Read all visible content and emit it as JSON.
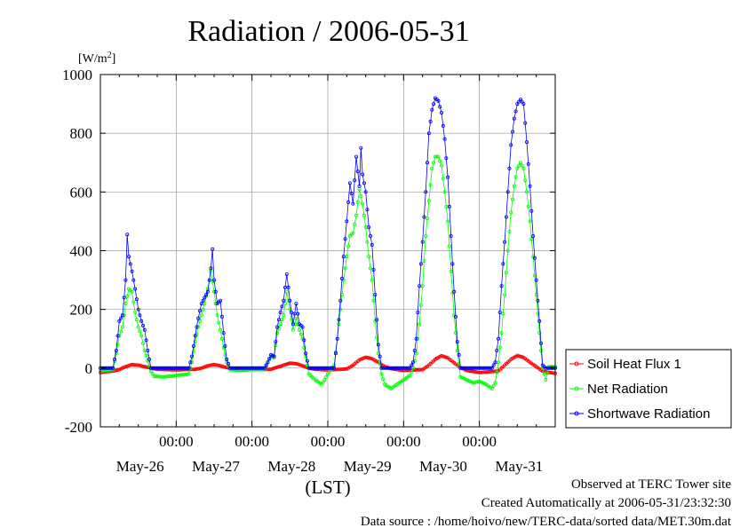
{
  "chart_data": {
    "type": "line",
    "title": "Radiation / 2006-05-31",
    "ylabel_unit": "[W/m",
    "ylabel_sup": "2",
    "ylabel_close": "]",
    "xlabel": "(LST)",
    "ylim": [
      -200,
      1000
    ],
    "yticks": [
      -200,
      0,
      200,
      400,
      600,
      800,
      1000
    ],
    "ytick_labels": [
      "-200",
      "0",
      "200",
      "400",
      "600",
      "800",
      "1000"
    ],
    "xlim": [
      0,
      144
    ],
    "xtick_labels": [
      "00:00",
      "00:00",
      "00:00",
      "00:00",
      "00:00"
    ],
    "xtick_positions": [
      24,
      48,
      72,
      96,
      120
    ],
    "day_labels": [
      "May-26",
      "May-27",
      "May-28",
      "May-29",
      "May-30",
      "May-31"
    ],
    "day_label_positions": [
      12,
      36,
      60,
      84,
      108,
      132
    ],
    "x_unit": "hours from 2006-05-25 12:00 LST",
    "grid": true,
    "legend_position": "right",
    "series": [
      {
        "name": "Soil Heat Flux 1",
        "color": "#ff0000",
        "profile": [
          [
            0,
            -15
          ],
          [
            2,
            -12
          ],
          [
            4,
            -10
          ],
          [
            6,
            -5
          ],
          [
            8,
            5
          ],
          [
            10,
            12
          ],
          [
            12,
            10
          ],
          [
            14,
            5
          ],
          [
            16,
            0
          ],
          [
            18,
            -4
          ],
          [
            24,
            -6
          ],
          [
            30,
            -4
          ],
          [
            32,
            0
          ],
          [
            34,
            8
          ],
          [
            36,
            12
          ],
          [
            38,
            8
          ],
          [
            40,
            2
          ],
          [
            42,
            -2
          ],
          [
            48,
            -5
          ],
          [
            54,
            -4
          ],
          [
            56,
            3
          ],
          [
            58,
            10
          ],
          [
            60,
            17
          ],
          [
            62,
            15
          ],
          [
            64,
            8
          ],
          [
            66,
            0
          ],
          [
            68,
            -4
          ],
          [
            72,
            -6
          ],
          [
            78,
            -3
          ],
          [
            80,
            10
          ],
          [
            82,
            28
          ],
          [
            84,
            37
          ],
          [
            86,
            32
          ],
          [
            88,
            20
          ],
          [
            90,
            5
          ],
          [
            92,
            -2
          ],
          [
            96,
            -8
          ],
          [
            102,
            -5
          ],
          [
            104,
            10
          ],
          [
            106,
            30
          ],
          [
            108,
            42
          ],
          [
            110,
            35
          ],
          [
            112,
            18
          ],
          [
            114,
            2
          ],
          [
            116,
            -8
          ],
          [
            120,
            -15
          ],
          [
            126,
            -10
          ],
          [
            128,
            10
          ],
          [
            130,
            30
          ],
          [
            132,
            43
          ],
          [
            134,
            36
          ],
          [
            136,
            20
          ],
          [
            138,
            5
          ],
          [
            140,
            -10
          ],
          [
            142,
            -15
          ],
          [
            144,
            -18
          ]
        ]
      },
      {
        "name": "Net Radiation",
        "color": "#00ff00",
        "profile": [
          [
            0,
            -10
          ],
          [
            4,
            -5
          ],
          [
            5,
            50
          ],
          [
            6,
            110
          ],
          [
            7,
            140
          ],
          [
            8,
            220
          ],
          [
            9,
            270
          ],
          [
            10,
            260
          ],
          [
            11,
            190
          ],
          [
            12,
            140
          ],
          [
            13,
            110
          ],
          [
            14,
            60
          ],
          [
            15,
            25
          ],
          [
            16,
            -10
          ],
          [
            17,
            -28
          ],
          [
            20,
            -30
          ],
          [
            24,
            -25
          ],
          [
            28,
            -20
          ],
          [
            29,
            20
          ],
          [
            30,
            90
          ],
          [
            31,
            140
          ],
          [
            32,
            180
          ],
          [
            33,
            220
          ],
          [
            34,
            270
          ],
          [
            35,
            330
          ],
          [
            36,
            260
          ],
          [
            37,
            180
          ],
          [
            38,
            130
          ],
          [
            39,
            70
          ],
          [
            40,
            20
          ],
          [
            41,
            -5
          ],
          [
            44,
            -8
          ],
          [
            48,
            -5
          ],
          [
            52,
            -5
          ],
          [
            53,
            20
          ],
          [
            54,
            40
          ],
          [
            55,
            35
          ],
          [
            56,
            120
          ],
          [
            57,
            150
          ],
          [
            58,
            180
          ],
          [
            59,
            260
          ],
          [
            60,
            200
          ],
          [
            61,
            130
          ],
          [
            62,
            170
          ],
          [
            63,
            130
          ],
          [
            64,
            100
          ],
          [
            65,
            40
          ],
          [
            66,
            -20
          ],
          [
            68,
            -40
          ],
          [
            70,
            -55
          ],
          [
            71,
            -40
          ],
          [
            72,
            -20
          ],
          [
            74,
            10
          ],
          [
            75,
            100
          ],
          [
            76,
            200
          ],
          [
            77,
            300
          ],
          [
            78,
            380
          ],
          [
            79,
            450
          ],
          [
            80,
            460
          ],
          [
            81,
            520
          ],
          [
            82,
            610
          ],
          [
            83,
            560
          ],
          [
            84,
            480
          ],
          [
            85,
            380
          ],
          [
            86,
            300
          ],
          [
            87,
            160
          ],
          [
            88,
            50
          ],
          [
            89,
            -20
          ],
          [
            90,
            -55
          ],
          [
            92,
            -70
          ],
          [
            94,
            -55
          ],
          [
            96,
            -40
          ],
          [
            98,
            -25
          ],
          [
            99,
            0
          ],
          [
            100,
            50
          ],
          [
            101,
            150
          ],
          [
            102,
            280
          ],
          [
            103,
            450
          ],
          [
            104,
            570
          ],
          [
            105,
            680
          ],
          [
            106,
            720
          ],
          [
            107,
            720
          ],
          [
            108,
            690
          ],
          [
            109,
            600
          ],
          [
            110,
            500
          ],
          [
            111,
            330
          ],
          [
            112,
            180
          ],
          [
            113,
            60
          ],
          [
            114,
            -30
          ],
          [
            116,
            -40
          ],
          [
            118,
            -50
          ],
          [
            120,
            -45
          ],
          [
            122,
            -55
          ],
          [
            124,
            -70
          ],
          [
            125,
            -50
          ],
          [
            126,
            20
          ],
          [
            127,
            120
          ],
          [
            128,
            250
          ],
          [
            129,
            400
          ],
          [
            130,
            530
          ],
          [
            131,
            620
          ],
          [
            132,
            680
          ],
          [
            133,
            700
          ],
          [
            134,
            680
          ],
          [
            135,
            600
          ],
          [
            136,
            500
          ],
          [
            137,
            380
          ],
          [
            138,
            250
          ],
          [
            139,
            120
          ],
          [
            140,
            0
          ],
          [
            141,
            -40
          ],
          [
            142,
            5
          ],
          [
            144,
            5
          ]
        ]
      },
      {
        "name": "Shortwave Radiation",
        "color": "#0000ff",
        "profile": [
          [
            0,
            0
          ],
          [
            4,
            0
          ],
          [
            5,
            60
          ],
          [
            6,
            160
          ],
          [
            7,
            180
          ],
          [
            8,
            300
          ],
          [
            8.5,
            455
          ],
          [
            9,
            380
          ],
          [
            10,
            330
          ],
          [
            11,
            270
          ],
          [
            12,
            200
          ],
          [
            13,
            160
          ],
          [
            14,
            130
          ],
          [
            15,
            60
          ],
          [
            16,
            0
          ],
          [
            28,
            0
          ],
          [
            29,
            40
          ],
          [
            30,
            110
          ],
          [
            31,
            170
          ],
          [
            32,
            220
          ],
          [
            33,
            240
          ],
          [
            34,
            260
          ],
          [
            35,
            340
          ],
          [
            35.5,
            405
          ],
          [
            36,
            300
          ],
          [
            37,
            220
          ],
          [
            38,
            230
          ],
          [
            39,
            120
          ],
          [
            40,
            30
          ],
          [
            41,
            0
          ],
          [
            52,
            0
          ],
          [
            53,
            20
          ],
          [
            54,
            45
          ],
          [
            55,
            40
          ],
          [
            56,
            140
          ],
          [
            57,
            190
          ],
          [
            58,
            230
          ],
          [
            59,
            320
          ],
          [
            60,
            230
          ],
          [
            61,
            150
          ],
          [
            62,
            220
          ],
          [
            63,
            150
          ],
          [
            64,
            140
          ],
          [
            65,
            50
          ],
          [
            66,
            0
          ],
          [
            74,
            0
          ],
          [
            75,
            100
          ],
          [
            76,
            230
          ],
          [
            77,
            380
          ],
          [
            78,
            500
          ],
          [
            79,
            630
          ],
          [
            80,
            560
          ],
          [
            81,
            720
          ],
          [
            82,
            620
          ],
          [
            82.5,
            750
          ],
          [
            83,
            660
          ],
          [
            84,
            600
          ],
          [
            85,
            480
          ],
          [
            86,
            420
          ],
          [
            87,
            250
          ],
          [
            88,
            80
          ],
          [
            89,
            0
          ],
          [
            98,
            0
          ],
          [
            99,
            20
          ],
          [
            100,
            100
          ],
          [
            101,
            280
          ],
          [
            102,
            430
          ],
          [
            103,
            600
          ],
          [
            104,
            800
          ],
          [
            105,
            880
          ],
          [
            106,
            920
          ],
          [
            107,
            910
          ],
          [
            108,
            870
          ],
          [
            109,
            780
          ],
          [
            110,
            650
          ],
          [
            111,
            450
          ],
          [
            112,
            260
          ],
          [
            113,
            90
          ],
          [
            114,
            0
          ],
          [
            124,
            0
          ],
          [
            125,
            20
          ],
          [
            126,
            100
          ],
          [
            127,
            280
          ],
          [
            128,
            430
          ],
          [
            129,
            600
          ],
          [
            130,
            760
          ],
          [
            131,
            850
          ],
          [
            132,
            900
          ],
          [
            133,
            915
          ],
          [
            134,
            900
          ],
          [
            135,
            770
          ],
          [
            136,
            620
          ],
          [
            137,
            450
          ],
          [
            138,
            300
          ],
          [
            139,
            160
          ],
          [
            140,
            10
          ],
          [
            141,
            0
          ],
          [
            144,
            0
          ]
        ]
      }
    ]
  },
  "footer": {
    "line1": "Observed at TERC Tower site",
    "line2": "Created Automatically at 2006-05-31/23:32:30",
    "line3": "Data source : /home/hoivo/new/TERC-data/sorted  data/MET.30m.dat"
  }
}
